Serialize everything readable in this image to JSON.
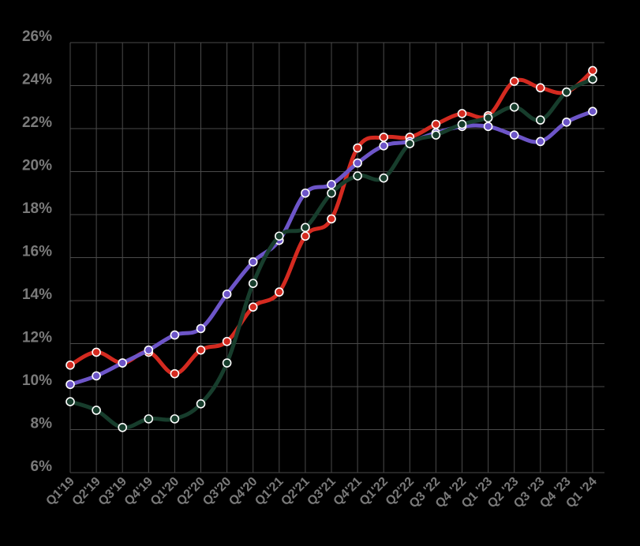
{
  "chart_data": {
    "type": "line",
    "title": "",
    "xlabel": "",
    "ylabel": "",
    "ylim": [
      6,
      26
    ],
    "yticks": [
      "6%",
      "8%",
      "10%",
      "12%",
      "14%",
      "16%",
      "18%",
      "20%",
      "22%",
      "24%",
      "26%"
    ],
    "ytick_values": [
      6,
      8,
      10,
      12,
      14,
      16,
      18,
      20,
      22,
      24,
      26
    ],
    "grid": true,
    "legend": "none",
    "categories": [
      "Q1'19",
      "Q2'19",
      "Q3'19",
      "Q4'19",
      "Q1'20",
      "Q2'20",
      "Q3'20",
      "Q4'20",
      "Q1'21",
      "Q2'21",
      "Q3'21",
      "Q4'21",
      "Q1'22",
      "Q2'22",
      "Q3 '22",
      "Q4 '22",
      "Q1 '23",
      "Q2 '23",
      "Q3 '23",
      "Q4 '23",
      "Q1 '24"
    ],
    "series": [
      {
        "color": "#d42a20",
        "values": [
          11.0,
          11.6,
          11.1,
          11.6,
          10.6,
          11.7,
          12.1,
          13.7,
          14.4,
          17.0,
          17.8,
          21.1,
          21.6,
          21.6,
          22.2,
          22.7,
          22.6,
          24.2,
          23.9,
          23.7,
          24.7
        ]
      },
      {
        "color": "#6d55c8",
        "values": [
          10.1,
          10.5,
          11.1,
          11.7,
          12.4,
          12.7,
          14.3,
          15.8,
          16.8,
          19.0,
          19.4,
          20.4,
          21.2,
          21.4,
          21.8,
          22.1,
          22.1,
          21.7,
          21.4,
          22.3,
          22.8
        ]
      },
      {
        "color": "#173d2c",
        "values": [
          9.3,
          8.9,
          8.1,
          8.5,
          8.5,
          9.2,
          11.1,
          14.8,
          17.0,
          17.4,
          19.0,
          19.8,
          19.7,
          21.3,
          21.7,
          22.2,
          22.5,
          23.0,
          22.4,
          23.7,
          24.3
        ]
      }
    ]
  }
}
